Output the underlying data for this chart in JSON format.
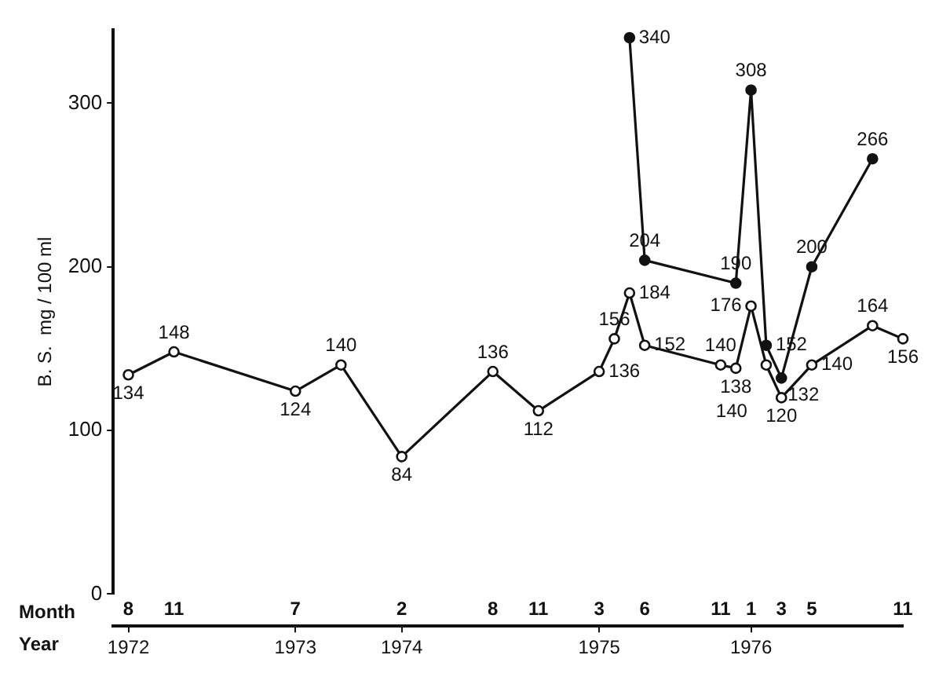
{
  "chart_data": {
    "type": "line",
    "ylabel": "B. S.  mg / 100 ml",
    "xlabel": "Month",
    "x2label": "Year",
    "xlim": [
      "1972-07",
      "1976-11"
    ],
    "xticks": [
      {
        "value": "1972-08",
        "label": "8"
      },
      {
        "value": "1972-11",
        "label": "11"
      },
      {
        "value": "1973-07",
        "label": "7"
      },
      {
        "value": "1974-02",
        "label": "2"
      },
      {
        "value": "1974-08",
        "label": "8"
      },
      {
        "value": "1974-11",
        "label": "11"
      },
      {
        "value": "1975-03",
        "label": "3"
      },
      {
        "value": "1975-06",
        "label": "6"
      },
      {
        "value": "1975-11",
        "label": "11"
      },
      {
        "value": "1976-01",
        "label": "1"
      },
      {
        "value": "1976-03",
        "label": "3"
      },
      {
        "value": "1976-05",
        "label": "5"
      },
      {
        "value": "1976-11",
        "label": "11"
      }
    ],
    "x2lim": [
      "1972-07",
      "1976-11"
    ],
    "x2ticks": [
      {
        "value": "1972-08",
        "label": "1972"
      },
      {
        "value": "1973-07",
        "label": "1973"
      },
      {
        "value": "1974-02",
        "label": "1974"
      },
      {
        "value": "1975-03",
        "label": "1975"
      },
      {
        "value": "1976-01",
        "label": "1976"
      }
    ],
    "ylim": [
      0,
      345
    ],
    "yticks": [
      0,
      100,
      200,
      300
    ],
    "grid": false,
    "legend": false,
    "marker": "circle",
    "line_style": "solid",
    "data_labels": true,
    "series": [
      {
        "color": "#111111",
        "x": [
          "1972-08",
          "1972-11",
          "1973-07",
          "1973-10",
          "1974-02",
          "1974-08",
          "1974-11",
          "1975-03",
          "1975-04",
          "1975-05",
          "1975-06",
          "1975-11",
          "1975-12",
          "1976-01",
          "1976-02",
          "1976-03",
          "1976-05",
          "1976-09",
          "1976-11"
        ],
        "values": [
          134,
          148,
          124,
          140,
          84,
          136,
          112,
          136,
          156,
          184,
          152,
          140,
          138,
          176,
          140,
          120,
          140,
          164,
          156
        ]
      },
      {
        "color": "#111111",
        "x": [
          "1975-05",
          "1975-06",
          "1975-12",
          "1976-01",
          "1976-02",
          "1976-03",
          "1976-05",
          "1976-09"
        ],
        "values": [
          340,
          204,
          190,
          308,
          152,
          132,
          200,
          266
        ]
      }
    ]
  }
}
